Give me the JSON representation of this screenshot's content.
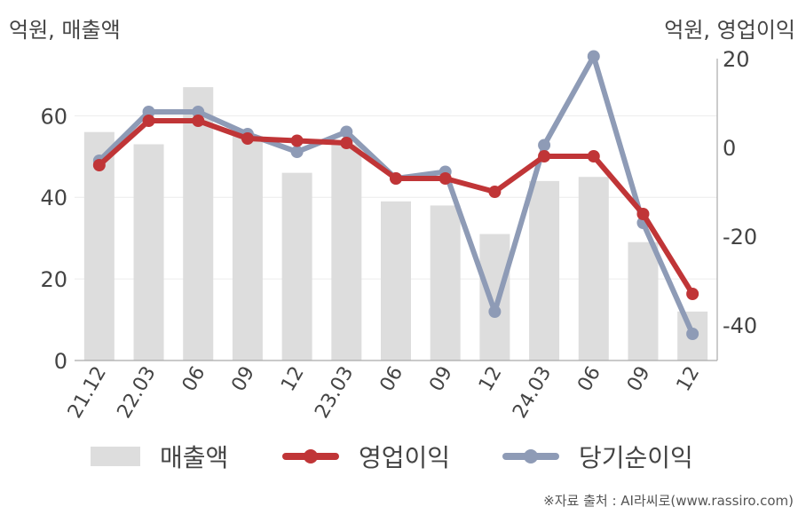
{
  "header": {
    "left_unit": "억원, 매출액",
    "right_unit": "억원, 영업이익"
  },
  "chart_data": {
    "type": "bar+line",
    "categories": [
      "21.12",
      "22.03",
      "06",
      "09",
      "12",
      "23.03",
      "06",
      "09",
      "12",
      "24.03",
      "06",
      "09",
      "12"
    ],
    "left_axis": {
      "ticks": [
        "0",
        "20",
        "40",
        "60"
      ],
      "ylim": [
        0,
        74
      ]
    },
    "right_axis": {
      "ticks": [
        "-40",
        "-20",
        "0",
        "20"
      ],
      "ylim": [
        -48,
        20
      ]
    },
    "grid": true,
    "series": [
      {
        "name": "매출액",
        "type": "bar",
        "axis": "left",
        "color": "#dddddd",
        "values": [
          56,
          53,
          67,
          55,
          46,
          53,
          39,
          38,
          31,
          44,
          45,
          29,
          12
        ]
      },
      {
        "name": "영업이익",
        "type": "line",
        "axis": "right",
        "color": "#c03537",
        "values": [
          -4,
          6,
          6,
          2,
          1.5,
          1,
          -7,
          -7,
          -10,
          -2,
          -2,
          -15,
          -33
        ]
      },
      {
        "name": "당기순이익",
        "type": "line",
        "axis": "right",
        "color": "#8e9bb6",
        "values": [
          -3,
          8,
          8,
          3,
          -1,
          3.5,
          -7,
          -5.5,
          -37,
          0.5,
          20.5,
          -17,
          -42
        ]
      }
    ],
    "legend": "bottom"
  },
  "source": "※자료 출처 : AI라씨로(www.rassiro.com)"
}
